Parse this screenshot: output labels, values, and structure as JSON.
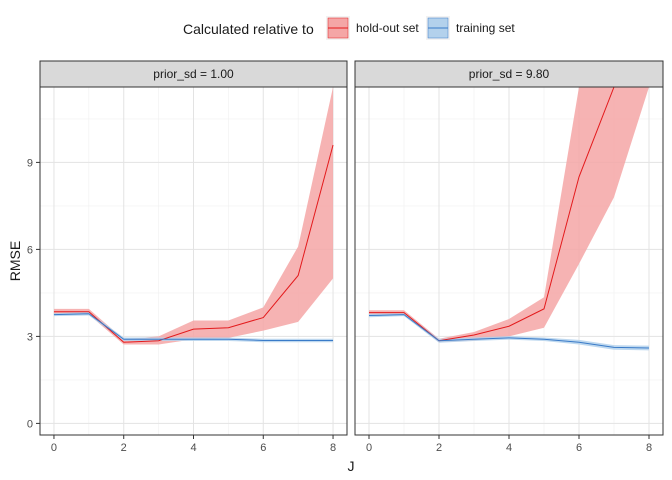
{
  "chart_data": {
    "type": "line",
    "xlabel": "J",
    "ylabel": "RMSE",
    "xlim": [
      -0.4,
      8.4
    ],
    "ylim": [
      -0.4,
      11.6
    ],
    "x_ticks": [
      0,
      2,
      4,
      6,
      8
    ],
    "y_ticks": [
      0,
      3,
      6,
      9
    ],
    "grid": true,
    "legend": {
      "position": "top",
      "title": "Calculated relative to",
      "entries": [
        "hold-out set",
        "training set"
      ]
    },
    "colors": {
      "hold-out set": {
        "line": "#e31a1c",
        "ribbon": "#f4a6a6"
      },
      "training set": {
        "line": "#3a7bc8",
        "ribbon": "#b3d1ec"
      }
    },
    "panels": [
      {
        "strip": "prior_sd = 1.00",
        "series": [
          {
            "name": "hold-out set",
            "x": [
              0,
              1,
              2,
              3,
              4,
              5,
              6,
              7,
              8
            ],
            "y": [
              3.85,
              3.85,
              2.8,
              2.85,
              3.25,
              3.3,
              3.65,
              5.1,
              9.6
            ],
            "ymin": [
              3.75,
              3.75,
              2.72,
              2.72,
              2.9,
              2.95,
              3.2,
              3.5,
              5.0
            ],
            "ymax": [
              3.95,
              3.95,
              2.9,
              3.0,
              3.55,
              3.55,
              4.0,
              6.1,
              11.6
            ]
          },
          {
            "name": "training set",
            "x": [
              0,
              1,
              2,
              3,
              4,
              5,
              6,
              7,
              8
            ],
            "y": [
              3.75,
              3.78,
              2.9,
              2.9,
              2.9,
              2.9,
              2.86,
              2.86,
              2.86
            ],
            "ymin": [
              3.7,
              3.72,
              2.84,
              2.84,
              2.84,
              2.84,
              2.8,
              2.8,
              2.8
            ],
            "ymax": [
              3.8,
              3.84,
              2.96,
              2.96,
              2.96,
              2.96,
              2.92,
              2.92,
              2.92
            ]
          }
        ]
      },
      {
        "strip": "prior_sd = 9.80",
        "series": [
          {
            "name": "hold-out set",
            "x": [
              0,
              1,
              2,
              3,
              4,
              5,
              6,
              7,
              8
            ],
            "y": [
              3.82,
              3.82,
              2.85,
              3.05,
              3.35,
              3.95,
              8.5,
              11.6,
              11.6
            ],
            "ymin": [
              3.75,
              3.75,
              2.8,
              2.85,
              3.0,
              3.3,
              5.5,
              7.8,
              11.6
            ],
            "ymax": [
              3.9,
              3.9,
              2.92,
              3.15,
              3.6,
              4.35,
              11.6,
              11.6,
              11.6
            ]
          },
          {
            "name": "training set",
            "x": [
              0,
              1,
              2,
              3,
              4,
              5,
              6,
              7,
              8
            ],
            "y": [
              3.72,
              3.75,
              2.85,
              2.9,
              2.95,
              2.9,
              2.8,
              2.62,
              2.6
            ],
            "ymin": [
              3.66,
              3.7,
              2.78,
              2.84,
              2.89,
              2.84,
              2.72,
              2.54,
              2.52
            ],
            "ymax": [
              3.78,
              3.8,
              2.92,
              2.96,
              3.01,
              2.96,
              2.88,
              2.7,
              2.68
            ]
          }
        ]
      }
    ]
  }
}
